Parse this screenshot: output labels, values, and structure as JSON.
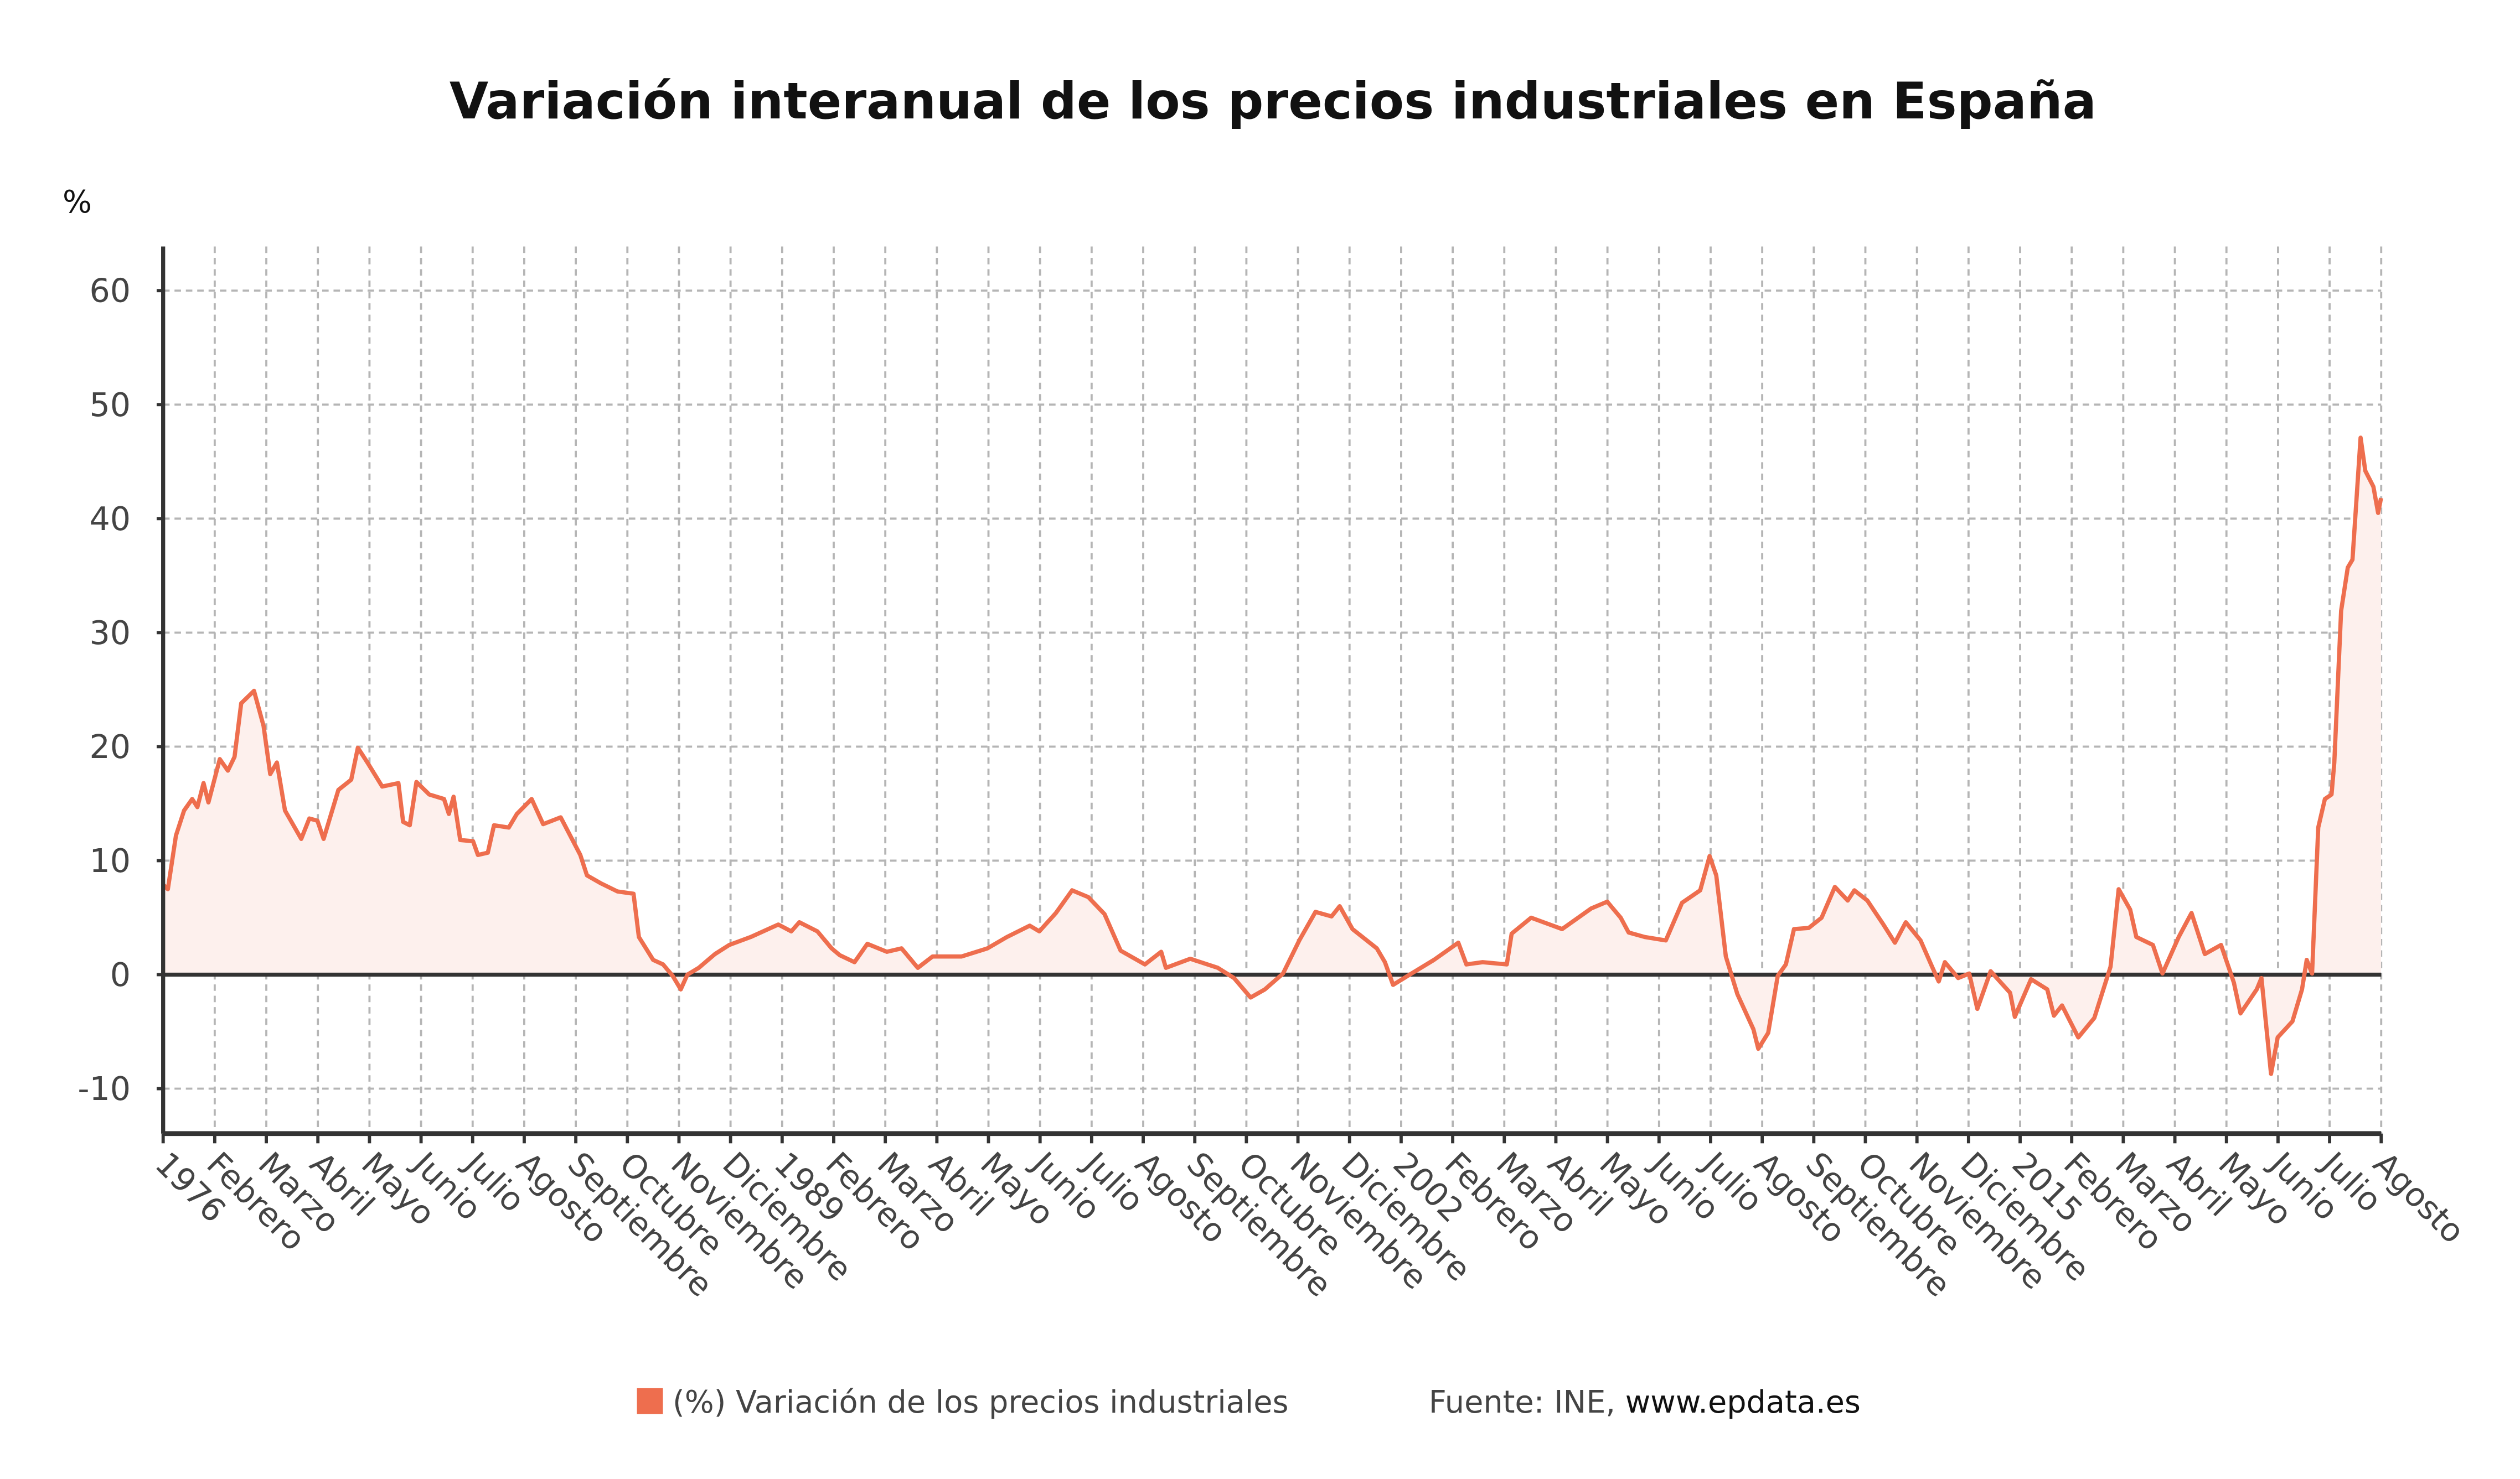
{
  "chart_data": {
    "type": "area",
    "title": "Variación interanual de los precios industriales en España",
    "ylabel": "%",
    "xlabel": "",
    "ylim": [
      -14,
      64
    ],
    "xlim": [
      "1976-01",
      "2022-08"
    ],
    "yticks": [
      60,
      50,
      40,
      30,
      20,
      10,
      0,
      -10
    ],
    "xtick_labels": [
      "1976",
      "Febrero",
      "Marzo",
      "Abril",
      "Mayo",
      "Junio",
      "Julio",
      "Agosto",
      "Septiembre",
      "Octubre",
      "Noviembre",
      "Diciembre",
      "1989",
      "Febrero",
      "Marzo",
      "Abril",
      "Mayo",
      "Junio",
      "Julio",
      "Agosto",
      "Septiembre",
      "Octubre",
      "Noviembre",
      "Diciembre",
      "2002",
      "Febrero",
      "Marzo",
      "Abril",
      "Mayo",
      "Junio",
      "Julio",
      "Agosto",
      "Septiembre",
      "Octubre",
      "Noviembre",
      "Diciembre",
      "2015",
      "Febrero",
      "Marzo",
      "Abril",
      "Mayo",
      "Junio",
      "Julio",
      "Agosto"
    ],
    "grid": true,
    "legend_position": "bottom",
    "series": [
      {
        "name": "(%) Variación de los precios industriales",
        "color": "#ee6e4e",
        "fill": "#fdf0ed",
        "x_unit": "year",
        "points": [
          [
            1976.0,
            7.9
          ],
          [
            1976.1,
            7.5
          ],
          [
            1976.27,
            12.2
          ],
          [
            1976.44,
            14.4
          ],
          [
            1976.61,
            15.4
          ],
          [
            1976.72,
            14.7
          ],
          [
            1976.85,
            16.8
          ],
          [
            1976.95,
            15.1
          ],
          [
            1977.19,
            18.9
          ],
          [
            1977.36,
            17.9
          ],
          [
            1977.5,
            19.1
          ],
          [
            1977.64,
            23.8
          ],
          [
            1977.91,
            24.9
          ],
          [
            1978.11,
            21.8
          ],
          [
            1978.25,
            17.6
          ],
          [
            1978.39,
            18.6
          ],
          [
            1978.56,
            14.4
          ],
          [
            1978.9,
            11.9
          ],
          [
            1979.07,
            13.7
          ],
          [
            1979.24,
            13.5
          ],
          [
            1979.37,
            11.9
          ],
          [
            1979.68,
            16.2
          ],
          [
            1979.95,
            17.1
          ],
          [
            1980.09,
            19.9
          ],
          [
            1980.29,
            18.6
          ],
          [
            1980.6,
            16.5
          ],
          [
            1980.94,
            16.8
          ],
          [
            1981.04,
            13.4
          ],
          [
            1981.18,
            13.1
          ],
          [
            1981.32,
            16.9
          ],
          [
            1981.59,
            15.8
          ],
          [
            1981.9,
            15.4
          ],
          [
            1982.0,
            14.1
          ],
          [
            1982.1,
            15.6
          ],
          [
            1982.24,
            11.8
          ],
          [
            1982.51,
            11.7
          ],
          [
            1982.61,
            10.5
          ],
          [
            1982.82,
            10.7
          ],
          [
            1982.95,
            13.1
          ],
          [
            1983.26,
            12.9
          ],
          [
            1983.43,
            14.1
          ],
          [
            1983.74,
            15.4
          ],
          [
            1983.98,
            13.2
          ],
          [
            1984.35,
            13.8
          ],
          [
            1984.76,
            10.5
          ],
          [
            1984.9,
            8.7
          ],
          [
            1985.2,
            8.0
          ],
          [
            1985.54,
            7.3
          ],
          [
            1985.88,
            7.1
          ],
          [
            1985.99,
            3.3
          ],
          [
            1986.29,
            1.3
          ],
          [
            1986.5,
            0.9
          ],
          [
            1986.7,
            -0.1
          ],
          [
            1986.87,
            -1.3
          ],
          [
            1987.01,
            0.0
          ],
          [
            1987.25,
            0.6
          ],
          [
            1987.59,
            1.8
          ],
          [
            1987.89,
            2.6
          ],
          [
            1988.34,
            3.3
          ],
          [
            1988.92,
            4.4
          ],
          [
            1989.19,
            3.8
          ],
          [
            1989.36,
            4.6
          ],
          [
            1989.74,
            3.8
          ],
          [
            1990.04,
            2.3
          ],
          [
            1990.21,
            1.7
          ],
          [
            1990.52,
            1.1
          ],
          [
            1990.79,
            2.7
          ],
          [
            1991.2,
            2.0
          ],
          [
            1991.51,
            2.3
          ],
          [
            1991.85,
            0.6
          ],
          [
            1992.16,
            1.6
          ],
          [
            1992.77,
            1.6
          ],
          [
            1993.31,
            2.3
          ],
          [
            1993.72,
            3.3
          ],
          [
            1994.2,
            4.3
          ],
          [
            1994.4,
            3.8
          ],
          [
            1994.75,
            5.4
          ],
          [
            1995.09,
            7.4
          ],
          [
            1995.43,
            6.8
          ],
          [
            1995.77,
            5.3
          ],
          [
            1996.11,
            2.1
          ],
          [
            1996.62,
            0.9
          ],
          [
            1996.96,
            2.0
          ],
          [
            1997.06,
            0.6
          ],
          [
            1997.57,
            1.4
          ],
          [
            1998.15,
            0.6
          ],
          [
            1998.49,
            -0.3
          ],
          [
            1998.84,
            -2.0
          ],
          [
            1999.14,
            -1.3
          ],
          [
            1999.52,
            0.1
          ],
          [
            1999.86,
            3.0
          ],
          [
            2000.2,
            5.5
          ],
          [
            2000.54,
            5.1
          ],
          [
            2000.71,
            6.0
          ],
          [
            2000.98,
            4.0
          ],
          [
            2001.49,
            2.3
          ],
          [
            2001.66,
            1.1
          ],
          [
            2001.83,
            -0.9
          ],
          [
            2002.14,
            -0.1
          ],
          [
            2002.69,
            1.3
          ],
          [
            2003.2,
            2.8
          ],
          [
            2003.37,
            0.9
          ],
          [
            2003.71,
            1.1
          ],
          [
            2004.22,
            0.9
          ],
          [
            2004.32,
            3.6
          ],
          [
            2004.73,
            5.0
          ],
          [
            2005.38,
            4.0
          ],
          [
            2005.99,
            5.8
          ],
          [
            2006.33,
            6.4
          ],
          [
            2006.61,
            5.0
          ],
          [
            2006.78,
            3.7
          ],
          [
            2007.12,
            3.3
          ],
          [
            2007.56,
            3.0
          ],
          [
            2007.9,
            6.3
          ],
          [
            2008.28,
            7.4
          ],
          [
            2008.48,
            10.4
          ],
          [
            2008.62,
            8.7
          ],
          [
            2008.82,
            1.6
          ],
          [
            2009.06,
            -1.7
          ],
          [
            2009.4,
            -4.8
          ],
          [
            2009.5,
            -6.5
          ],
          [
            2009.71,
            -5.1
          ],
          [
            2009.91,
            -0.1
          ],
          [
            2010.08,
            0.9
          ],
          [
            2010.25,
            4.0
          ],
          [
            2010.56,
            4.1
          ],
          [
            2010.83,
            5.0
          ],
          [
            2011.11,
            7.7
          ],
          [
            2011.38,
            6.5
          ],
          [
            2011.52,
            7.4
          ],
          [
            2011.79,
            6.5
          ],
          [
            2012.13,
            4.4
          ],
          [
            2012.37,
            2.8
          ],
          [
            2012.6,
            4.6
          ],
          [
            2012.91,
            3.0
          ],
          [
            2013.15,
            0.7
          ],
          [
            2013.29,
            -0.6
          ],
          [
            2013.42,
            1.1
          ],
          [
            2013.7,
            -0.3
          ],
          [
            2013.93,
            0.1
          ],
          [
            2014.1,
            -3.0
          ],
          [
            2014.38,
            0.3
          ],
          [
            2014.79,
            -1.6
          ],
          [
            2014.89,
            -3.7
          ],
          [
            2015.23,
            -0.4
          ],
          [
            2015.57,
            -1.3
          ],
          [
            2015.71,
            -3.6
          ],
          [
            2015.88,
            -2.7
          ],
          [
            2016.22,
            -5.5
          ],
          [
            2016.56,
            -3.8
          ],
          [
            2016.9,
            0.7
          ],
          [
            2017.07,
            7.5
          ],
          [
            2017.31,
            5.7
          ],
          [
            2017.44,
            3.3
          ],
          [
            2017.79,
            2.6
          ],
          [
            2017.99,
            0.1
          ],
          [
            2018.33,
            3.3
          ],
          [
            2018.6,
            5.4
          ],
          [
            2018.88,
            1.8
          ],
          [
            2019.22,
            2.6
          ],
          [
            2019.49,
            -0.7
          ],
          [
            2019.63,
            -3.4
          ],
          [
            2019.97,
            -1.3
          ],
          [
            2020.07,
            -0.3
          ],
          [
            2020.27,
            -8.7
          ],
          [
            2020.41,
            -5.5
          ],
          [
            2020.72,
            -4.1
          ],
          [
            2020.92,
            -1.3
          ],
          [
            2021.02,
            1.3
          ],
          [
            2021.13,
            0.1
          ],
          [
            2021.26,
            12.9
          ],
          [
            2021.4,
            15.4
          ],
          [
            2021.54,
            15.8
          ],
          [
            2021.6,
            18.6
          ],
          [
            2021.74,
            31.9
          ],
          [
            2021.88,
            35.7
          ],
          [
            2021.98,
            36.4
          ],
          [
            2022.15,
            47.1
          ],
          [
            2022.25,
            44.2
          ],
          [
            2022.42,
            42.8
          ],
          [
            2022.52,
            40.5
          ],
          [
            2022.58,
            41.8
          ]
        ]
      }
    ]
  },
  "legend": {
    "series_label": "(%) Variación de los precios industriales",
    "source_prefix": "Fuente: INE, ",
    "source_link": "www.epdata.es"
  }
}
